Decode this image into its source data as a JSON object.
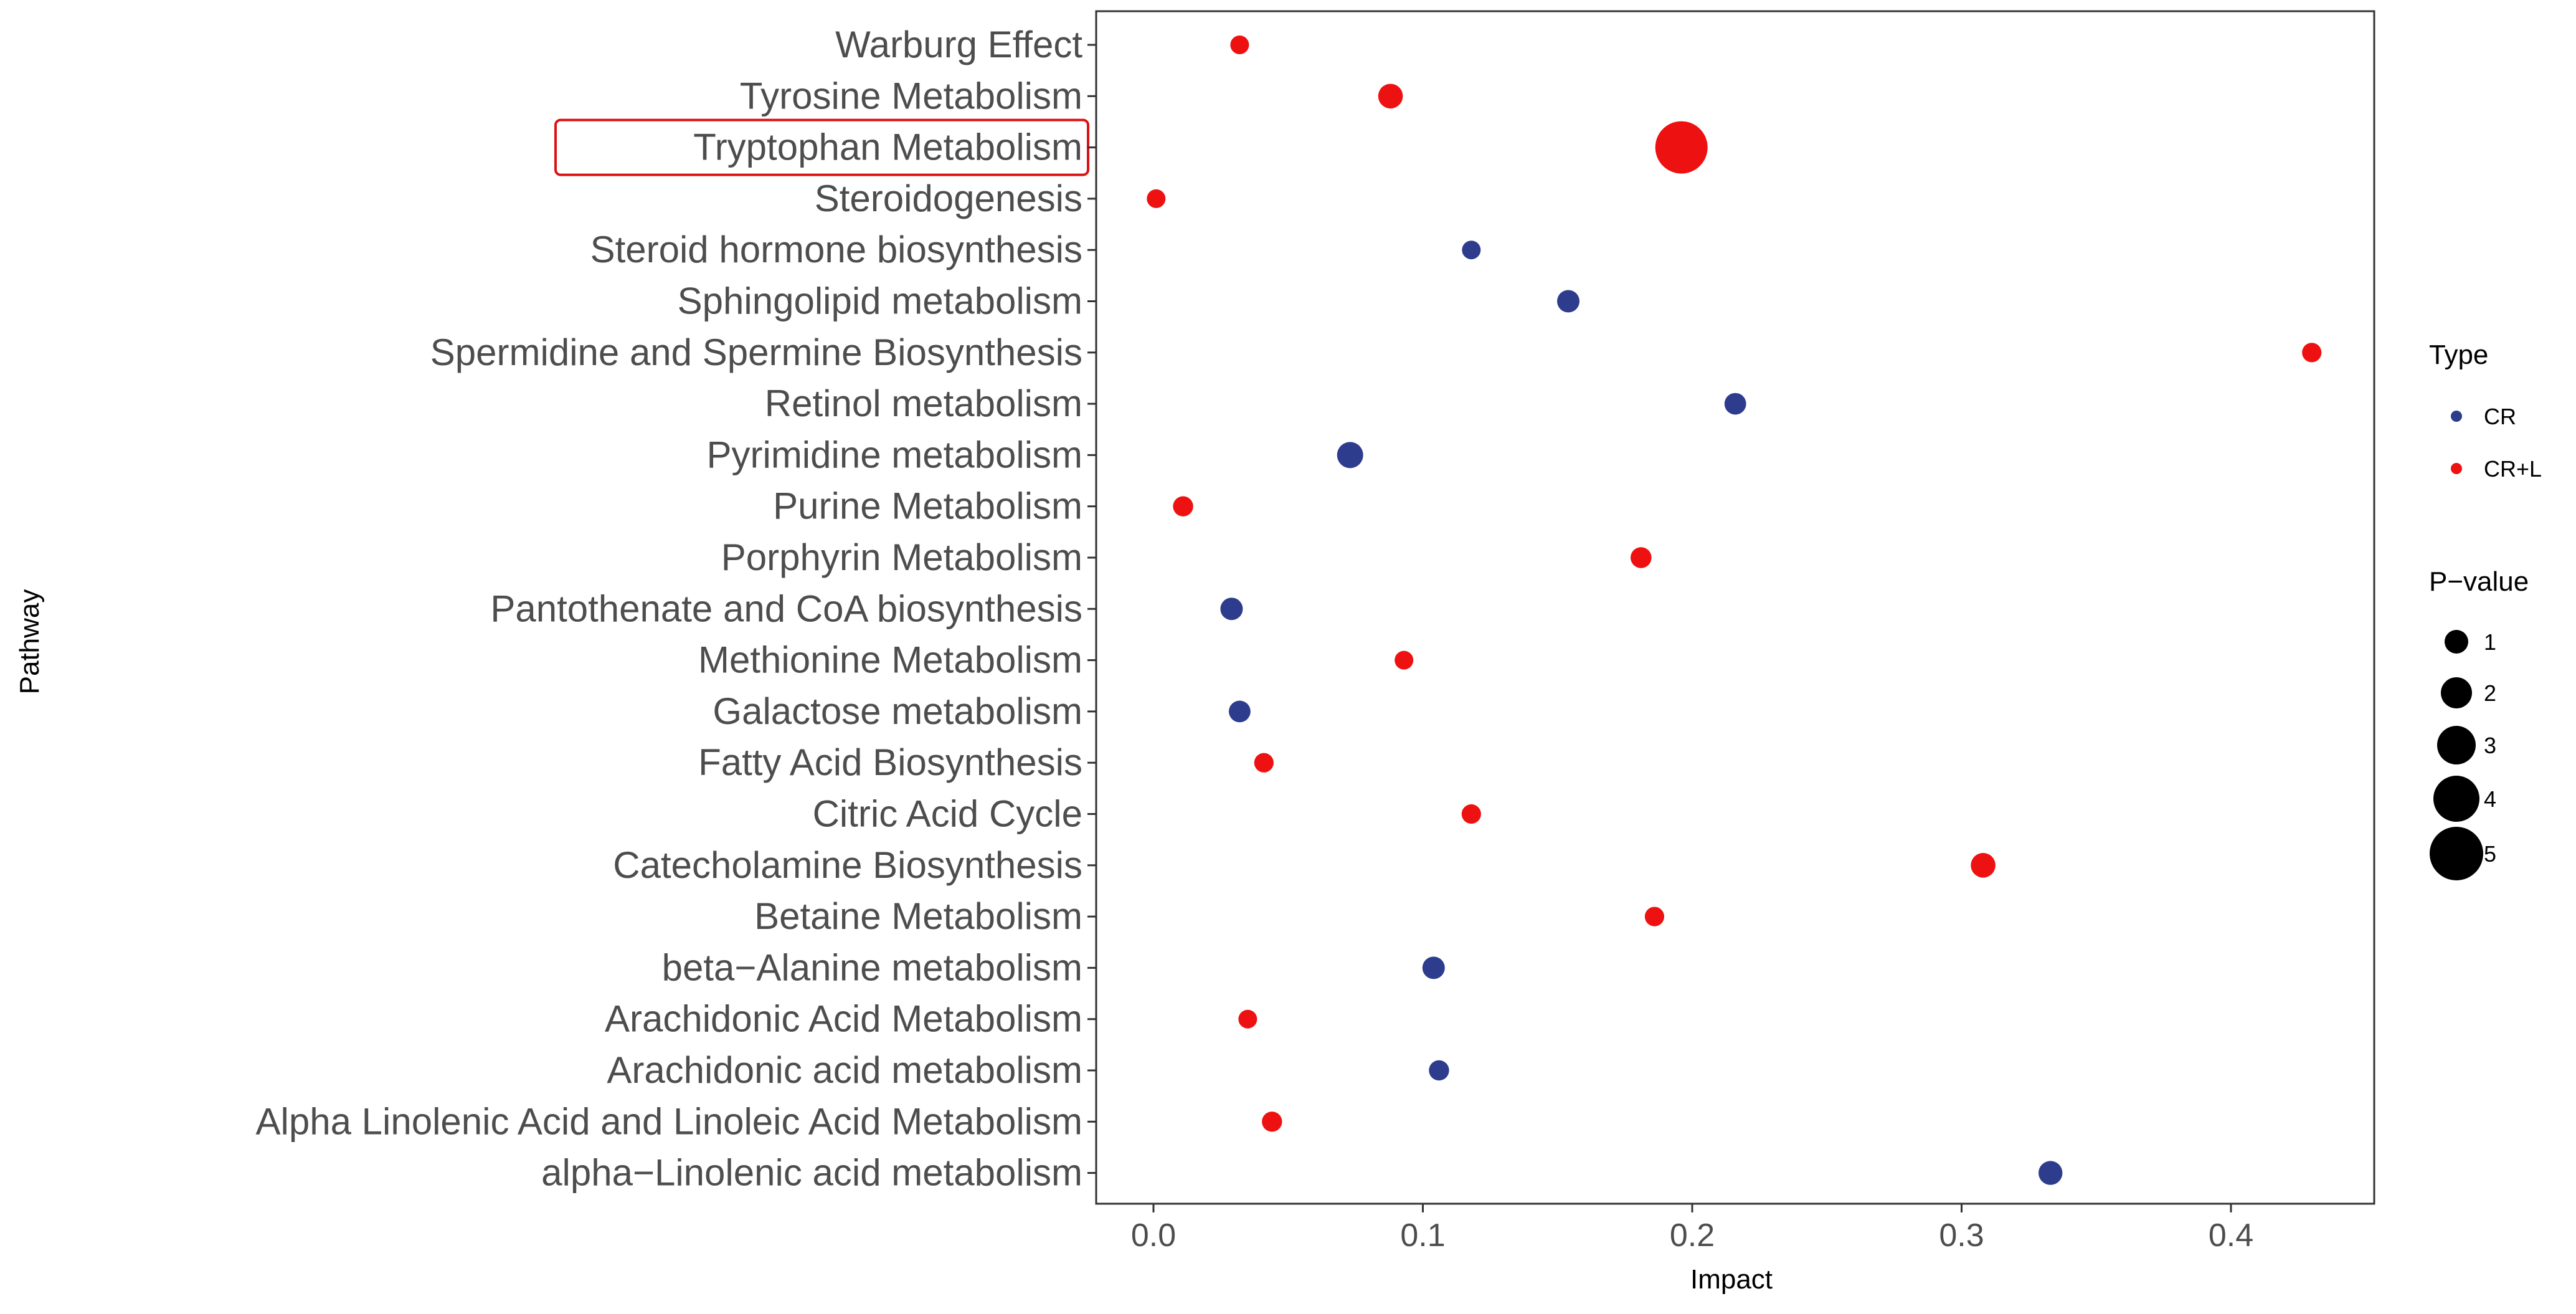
{
  "chart_data": {
    "type": "scatter",
    "title": "",
    "xlabel": "Impact",
    "ylabel": "Pathway",
    "xlim": [
      -0.02,
      0.45
    ],
    "x_ticks": [
      0.0,
      0.1,
      0.2,
      0.3,
      0.4
    ],
    "x_tick_labels": [
      "0.0",
      "0.1",
      "0.2",
      "0.3",
      "0.4"
    ],
    "grid": false,
    "highlighted_category": "Tryptophan Metabolism",
    "categories": [
      "Warburg Effect",
      "Tyrosine Metabolism",
      "Tryptophan Metabolism",
      "Steroidogenesis",
      "Steroid hormone biosynthesis",
      "Sphingolipid metabolism",
      "Spermidine and Spermine Biosynthesis",
      "Retinol metabolism",
      "Pyrimidine metabolism",
      "Purine Metabolism",
      "Porphyrin Metabolism",
      "Pantothenate and CoA biosynthesis",
      "Methionine Metabolism",
      "Galactose metabolism",
      "Fatty Acid Biosynthesis",
      "Citric Acid Cycle",
      "Catecholamine Biosynthesis",
      "Betaine Metabolism",
      "beta−Alanine metabolism",
      "Arachidonic Acid Metabolism",
      "Arachidonic acid metabolism",
      "Alpha Linolenic Acid and Linoleic Acid Metabolism",
      "alpha−Linolenic acid metabolism"
    ],
    "points": [
      {
        "pathway": "Warburg Effect",
        "impact": 0.032,
        "p_value": 1.0,
        "type": "CR+L"
      },
      {
        "pathway": "Tyrosine Metabolism",
        "impact": 0.088,
        "p_value": 1.8,
        "type": "CR+L"
      },
      {
        "pathway": "Tryptophan Metabolism",
        "impact": 0.196,
        "p_value": 5.5,
        "type": "CR+L"
      },
      {
        "pathway": "Steroidogenesis",
        "impact": 0.001,
        "p_value": 1.0,
        "type": "CR+L"
      },
      {
        "pathway": "Steroid hormone biosynthesis",
        "impact": 0.118,
        "p_value": 1.0,
        "type": "CR"
      },
      {
        "pathway": "Sphingolipid metabolism",
        "impact": 0.154,
        "p_value": 1.5,
        "type": "CR"
      },
      {
        "pathway": "Spermidine and Spermine Biosynthesis",
        "impact": 0.43,
        "p_value": 1.1,
        "type": "CR+L"
      },
      {
        "pathway": "Retinol metabolism",
        "impact": 0.216,
        "p_value": 1.4,
        "type": "CR"
      },
      {
        "pathway": "Pyrimidine metabolism",
        "impact": 0.073,
        "p_value": 2.0,
        "type": "CR"
      },
      {
        "pathway": "Purine Metabolism",
        "impact": 0.011,
        "p_value": 1.2,
        "type": "CR+L"
      },
      {
        "pathway": "Porphyrin Metabolism",
        "impact": 0.181,
        "p_value": 1.3,
        "type": "CR+L"
      },
      {
        "pathway": "Pantothenate and CoA biosynthesis",
        "impact": 0.029,
        "p_value": 1.5,
        "type": "CR"
      },
      {
        "pathway": "Methionine Metabolism",
        "impact": 0.093,
        "p_value": 1.0,
        "type": "CR+L"
      },
      {
        "pathway": "Galactose metabolism",
        "impact": 0.032,
        "p_value": 1.4,
        "type": "CR"
      },
      {
        "pathway": "Fatty Acid Biosynthesis",
        "impact": 0.041,
        "p_value": 1.1,
        "type": "CR+L"
      },
      {
        "pathway": "Citric Acid Cycle",
        "impact": 0.118,
        "p_value": 1.1,
        "type": "CR+L"
      },
      {
        "pathway": "Catecholamine Biosynthesis",
        "impact": 0.308,
        "p_value": 1.8,
        "type": "CR+L"
      },
      {
        "pathway": "Betaine Metabolism",
        "impact": 0.186,
        "p_value": 1.1,
        "type": "CR+L"
      },
      {
        "pathway": "beta−Alanine metabolism",
        "impact": 0.104,
        "p_value": 1.5,
        "type": "CR"
      },
      {
        "pathway": "Arachidonic Acid Metabolism",
        "impact": 0.035,
        "p_value": 1.0,
        "type": "CR+L"
      },
      {
        "pathway": "Arachidonic acid metabolism",
        "impact": 0.106,
        "p_value": 1.2,
        "type": "CR"
      },
      {
        "pathway": "Alpha Linolenic Acid and Linoleic Acid Metabolism",
        "impact": 0.044,
        "p_value": 1.2,
        "type": "CR+L"
      },
      {
        "pathway": "alpha−Linolenic acid metabolism",
        "impact": 0.333,
        "p_value": 1.7,
        "type": "CR"
      }
    ],
    "legend": {
      "position": "right",
      "type_title": "Type",
      "types": [
        {
          "label": "CR",
          "color": "#2e3c8e"
        },
        {
          "label": "CR+L",
          "color": "#ee1111"
        }
      ],
      "size_title": "P−value",
      "sizes": [
        1,
        2,
        3,
        4,
        5
      ],
      "size_labels": [
        "1",
        "2",
        "3",
        "4",
        "5"
      ]
    },
    "colors": {
      "CR": "#2e3c8e",
      "CR+L": "#ee1111",
      "highlight_box": "#dd1111",
      "panel_border": "#333333",
      "axis_text": "#4d4d4d"
    }
  }
}
